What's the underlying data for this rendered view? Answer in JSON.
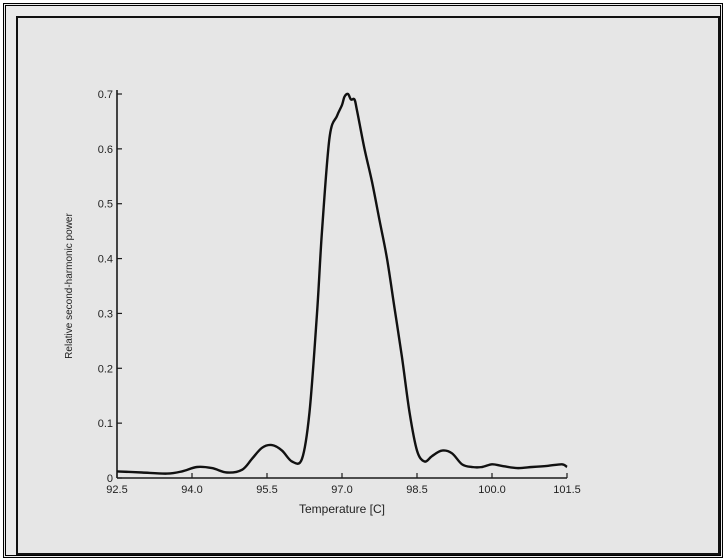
{
  "chart_data": {
    "type": "line",
    "title": "",
    "xlabel": "Temperature [C]",
    "ylabel": "Relative second-harmonic power",
    "xlim": [
      92.5,
      101.5
    ],
    "ylim": [
      0,
      0.7
    ],
    "x_ticks": [
      92.5,
      94.0,
      95.5,
      97.0,
      98.5,
      100.0,
      101.5
    ],
    "x_tick_labels": [
      "92.5",
      "94.0",
      "95.5",
      "97.0",
      "98.5",
      "100.0",
      "101.5"
    ],
    "y_ticks": [
      0,
      0.1,
      0.2,
      0.3,
      0.4,
      0.5,
      0.6,
      0.7
    ],
    "y_tick_labels": [
      "0",
      "0.1",
      "0.2",
      "0.3",
      "0.4",
      "0.5",
      "0.6",
      "0.7"
    ],
    "grid": false,
    "series": [
      {
        "x": [
          92.5,
          93.0,
          93.5,
          93.8,
          94.1,
          94.4,
          94.7,
          95.0,
          95.2,
          95.4,
          95.6,
          95.8,
          96.0,
          96.2,
          96.35,
          96.5,
          96.6,
          96.75,
          96.9,
          97.0,
          97.05,
          97.12,
          97.18,
          97.25,
          97.3,
          97.45,
          97.6,
          97.75,
          97.9,
          98.05,
          98.2,
          98.35,
          98.5,
          98.65,
          98.8,
          99.0,
          99.2,
          99.4,
          99.6,
          99.8,
          100.0,
          100.2,
          100.5,
          100.8,
          101.1,
          101.4,
          101.5
        ],
        "y": [
          0.012,
          0.01,
          0.008,
          0.012,
          0.02,
          0.018,
          0.01,
          0.015,
          0.035,
          0.055,
          0.06,
          0.05,
          0.03,
          0.035,
          0.12,
          0.3,
          0.45,
          0.62,
          0.66,
          0.68,
          0.695,
          0.7,
          0.69,
          0.69,
          0.67,
          0.6,
          0.54,
          0.47,
          0.4,
          0.31,
          0.22,
          0.12,
          0.05,
          0.03,
          0.04,
          0.05,
          0.045,
          0.025,
          0.02,
          0.02,
          0.025,
          0.022,
          0.018,
          0.02,
          0.022,
          0.025,
          0.02
        ]
      }
    ]
  }
}
